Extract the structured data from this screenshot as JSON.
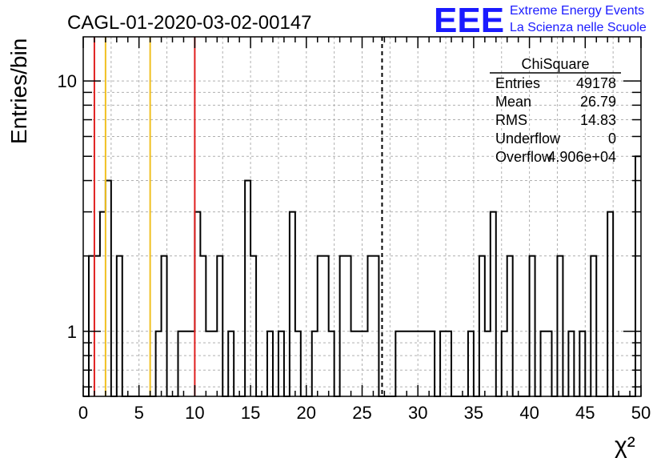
{
  "chart_data": {
    "type": "histogram",
    "title": "CAGL-01-2020-03-02-00147",
    "xlabel": "χ²",
    "ylabel": "Entries/bin",
    "xlim": [
      0,
      50
    ],
    "ylim": [
      0.55,
      15
    ],
    "yscale": "log",
    "grid": true,
    "bin_width": 0.5,
    "x_ticks": [
      "0",
      "5",
      "10",
      "15",
      "20",
      "25",
      "30",
      "35",
      "40",
      "45",
      "50"
    ],
    "y_ticks": [
      "1",
      "10"
    ],
    "counts": [
      0,
      2,
      2,
      3,
      4,
      0,
      2,
      0,
      0,
      0,
      0,
      0,
      0,
      1,
      2,
      0,
      0,
      1,
      1,
      1,
      3,
      2,
      1,
      1,
      2,
      0,
      1,
      0,
      0,
      4,
      2,
      0,
      0,
      1,
      0,
      1,
      0,
      3,
      1,
      0,
      0,
      1,
      2,
      2,
      1,
      0,
      2,
      2,
      1,
      1,
      1,
      2,
      2,
      0,
      0,
      0,
      1,
      1,
      1,
      1,
      1,
      1,
      1,
      0,
      1,
      1,
      0,
      0,
      0,
      1,
      0,
      2,
      1,
      3,
      0,
      1,
      2,
      0,
      0,
      0,
      2,
      0,
      1,
      1,
      0,
      2,
      0,
      1,
      0,
      1,
      0,
      2,
      0,
      0,
      3,
      0,
      0,
      0,
      0,
      5
    ],
    "vertical_lines": [
      {
        "x": 1.0,
        "color": "#e02020",
        "style": "solid"
      },
      {
        "x": 2.0,
        "color": "#f0c020",
        "style": "solid"
      },
      {
        "x": 6.0,
        "color": "#f0c020",
        "style": "solid"
      },
      {
        "x": 10.0,
        "color": "#e02020",
        "style": "solid"
      },
      {
        "x": 26.79,
        "color": "#000000",
        "style": "dashed"
      }
    ],
    "stats_box": {
      "title": "ChiSquare",
      "rows": [
        {
          "label": "Entries",
          "value": "49178"
        },
        {
          "label": "Mean",
          "value": "26.79"
        },
        {
          "label": "RMS",
          "value": "14.83"
        },
        {
          "label": "Underflow",
          "value": "0"
        },
        {
          "label": "Overflow",
          "value": "4.906e+04"
        }
      ]
    }
  },
  "logo": {
    "text": "EEE",
    "line1": "Extreme Energy Events",
    "line2": "La Scienza nelle Scuole",
    "color": "#1a1aff"
  }
}
